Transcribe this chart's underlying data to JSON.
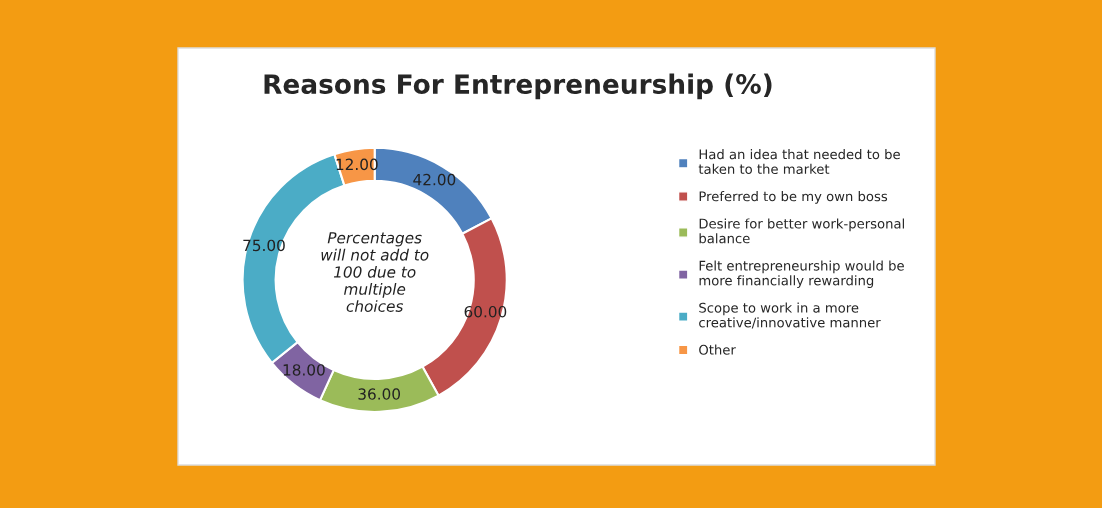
{
  "chart_data": {
    "type": "donut",
    "title": "Reasons For Entrepreneurship (%)",
    "categories": [
      "Had an idea that needed to be\ntaken to the market",
      "Preferred to be my own boss",
      "Desire for better work-personal\nbalance",
      "Felt entrepreneurship would be\nmore financially rewarding",
      "Scope to work in a more\ncreative/innovative manner",
      "Other"
    ],
    "values": [
      42,
      60,
      36,
      18,
      75,
      12
    ],
    "colors": [
      "#4f81bd",
      "#c0504d",
      "#9bbb59",
      "#8064a2",
      "#4bacc6",
      "#f79646"
    ],
    "value_labels": [
      "42.00",
      "60.00",
      "36.00",
      "18.00",
      "75.00",
      "12.00"
    ],
    "annotations": [
      "Percentages\nwill not add to\n100 due to\nmultiple\nchoices"
    ],
    "legend": "right"
  }
}
